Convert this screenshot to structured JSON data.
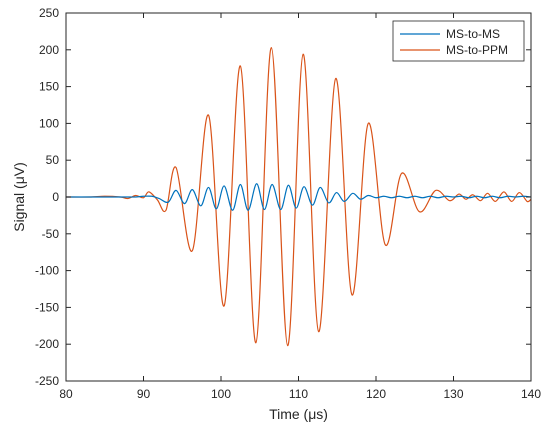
{
  "chart_data": {
    "type": "line",
    "title": "",
    "xlabel": "Time (μs)",
    "ylabel": "Signal (μV)",
    "xlim": [
      80,
      140
    ],
    "ylim": [
      -250,
      250
    ],
    "xticks": [
      80,
      90,
      100,
      110,
      120,
      130,
      140
    ],
    "yticks": [
      -250,
      -200,
      -150,
      -100,
      -50,
      0,
      50,
      100,
      150,
      200,
      250
    ],
    "grid": false,
    "legend_position": "top-right",
    "series": [
      {
        "name": "MS-to-MS",
        "color": "#0072BD",
        "x": [
          80,
          84,
          86,
          87,
          88,
          89,
          90,
          91.1,
          92,
          93.2,
          94.2,
          95.3,
          96.3,
          97.4,
          98.4,
          99.4,
          100.4,
          101.5,
          102.5,
          103.5,
          104.6,
          105.6,
          106.6,
          107.7,
          108.7,
          109.7,
          110.7,
          111.8,
          112.8,
          113.9,
          114.9,
          115.9,
          117,
          118,
          119,
          120,
          121,
          122,
          123,
          124,
          125,
          126,
          127,
          128,
          129,
          130,
          131,
          132,
          133,
          134,
          135,
          136,
          137,
          138,
          139,
          140
        ],
        "y": [
          0,
          0,
          0,
          0,
          0,
          0,
          1,
          1,
          -2,
          -7,
          9,
          -9,
          10,
          -12,
          13,
          -16,
          15,
          -18,
          17,
          -18,
          18,
          -17,
          17,
          -17,
          16,
          -15,
          14,
          -11,
          13,
          -8,
          6,
          -6,
          5,
          -3,
          2,
          -1,
          1,
          -1,
          1,
          -1,
          1,
          -1,
          1,
          -1,
          1,
          0,
          1,
          -1,
          1,
          -1,
          1,
          -1,
          1,
          0,
          1,
          0
        ]
      },
      {
        "name": "MS-to-PPM",
        "color": "#D95319",
        "x": [
          80,
          83,
          85,
          87,
          88,
          89,
          90,
          90.7,
          91.8,
          92.9,
          94.2,
          96.3,
          98.4,
          100.4,
          102.5,
          104.5,
          106.5,
          108.6,
          110.6,
          112.6,
          114.8,
          116.9,
          119,
          121.2,
          123.3,
          125.6,
          127.7,
          129.5,
          130.7,
          131.6,
          132.5,
          133.5,
          134.4,
          135.4,
          136.5,
          137.5,
          138.5,
          139.5,
          140
        ],
        "y": [
          0,
          0,
          1,
          0,
          -2,
          2,
          -1,
          7,
          -4,
          -18,
          40,
          -73,
          111,
          -148,
          178,
          -198,
          203,
          -202,
          194,
          -183,
          161,
          -133,
          100,
          -65,
          32,
          -20,
          9,
          -5,
          4,
          -3,
          3,
          -5,
          5,
          -6,
          7,
          -6,
          6,
          -6,
          -3
        ]
      }
    ]
  }
}
